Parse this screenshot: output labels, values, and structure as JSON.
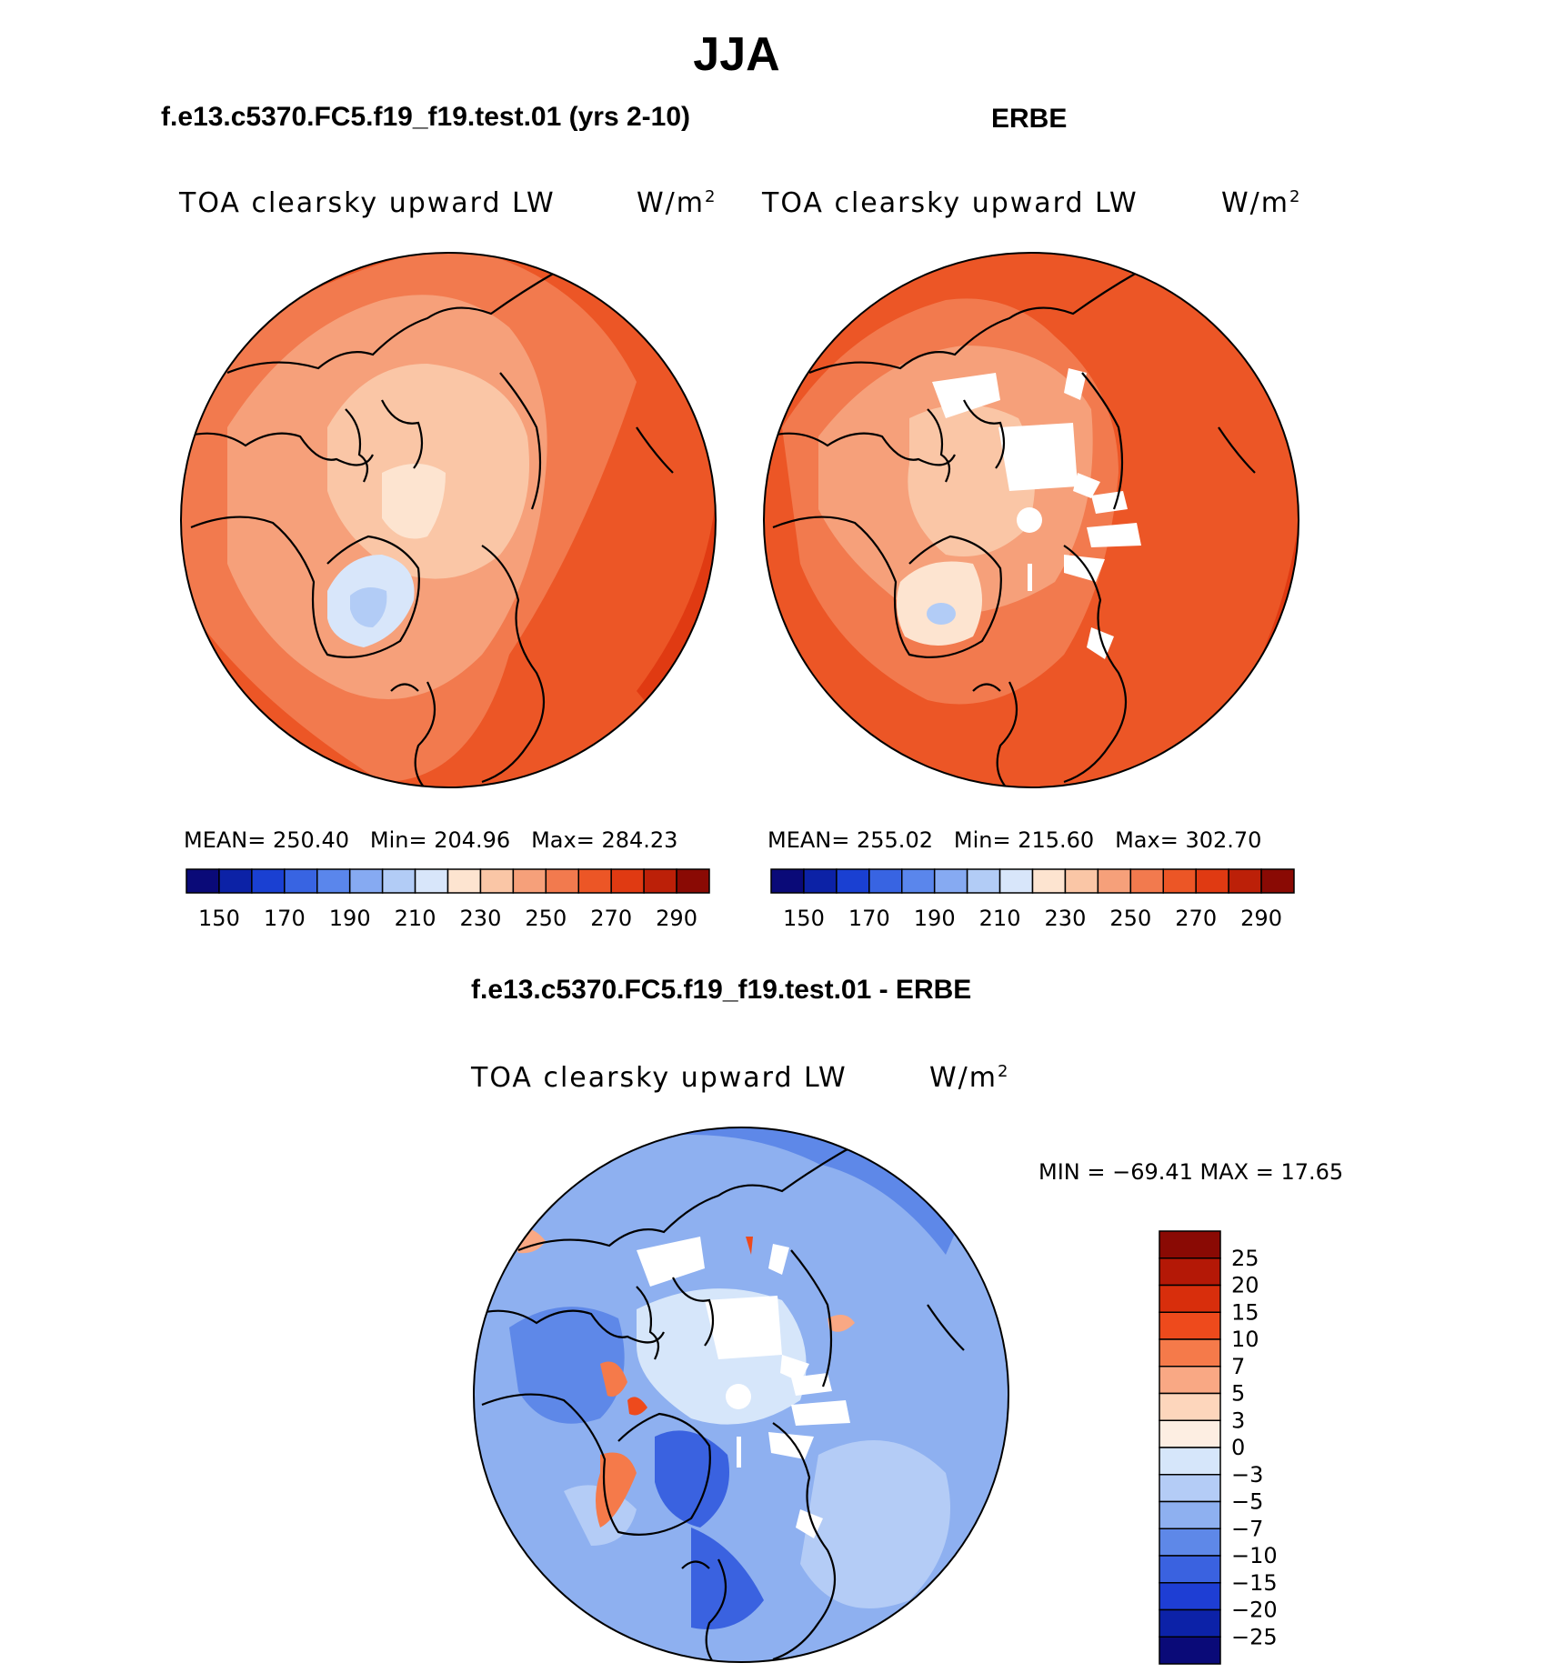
{
  "title": "JJA",
  "chart_data": [
    {
      "type": "heatmap",
      "projection": "north-polar-stereographic",
      "title": "f.e13.c5370.FC5.f19_f19.test.01 (yrs 2-10)",
      "variable": "TOA clearsky upward LW",
      "units": "W/m",
      "units_exponent": "2",
      "stats": {
        "mean": "250.40",
        "min": "204.96",
        "max": "284.23"
      },
      "stats_labels": {
        "mean": "MEAN=",
        "min": "Min=",
        "max": "Max="
      },
      "colorbar": {
        "orientation": "horizontal",
        "tick_labels": [
          "150",
          "170",
          "190",
          "210",
          "230",
          "250",
          "270",
          "290"
        ],
        "colors": [
          "#0a0a78",
          "#0c22a6",
          "#1a40d2",
          "#3864e2",
          "#5a86ec",
          "#86aaf2",
          "#b2ccf6",
          "#d8e6fa",
          "#fde4d0",
          "#fac6a6",
          "#f6a07a",
          "#f27a4e",
          "#ec5626",
          "#e03a12",
          "#bc2008",
          "#8a0a04"
        ]
      }
    },
    {
      "type": "heatmap",
      "projection": "north-polar-stereographic",
      "title": "ERBE",
      "variable": "TOA clearsky upward LW",
      "units": "W/m",
      "units_exponent": "2",
      "stats": {
        "mean": "255.02",
        "min": "215.60",
        "max": "302.70"
      },
      "stats_labels": {
        "mean": "MEAN=",
        "min": "Min=",
        "max": "Max="
      },
      "colorbar": {
        "orientation": "horizontal",
        "tick_labels": [
          "150",
          "170",
          "190",
          "210",
          "230",
          "250",
          "270",
          "290"
        ],
        "colors": [
          "#0a0a78",
          "#0c22a6",
          "#1a40d2",
          "#3864e2",
          "#5a86ec",
          "#86aaf2",
          "#b2ccf6",
          "#d8e6fa",
          "#fde4d0",
          "#fac6a6",
          "#f6a07a",
          "#f27a4e",
          "#ec5626",
          "#e03a12",
          "#bc2008",
          "#8a0a04"
        ]
      }
    },
    {
      "type": "heatmap",
      "projection": "north-polar-stereographic",
      "title": "f.e13.c5370.FC5.f19_f19.test.01 - ERBE",
      "variable": "TOA clearsky upward LW",
      "units": "W/m",
      "units_exponent": "2",
      "minmax": {
        "label": "MIN = −69.41 MAX =  17.65",
        "min": -69.41,
        "max": 17.65
      },
      "colorbar": {
        "orientation": "vertical",
        "tick_labels": [
          "25",
          "20",
          "15",
          "10",
          "7",
          "5",
          "3",
          "0",
          "−3",
          "−5",
          "−7",
          "−10",
          "−15",
          "−20",
          "−25"
        ],
        "colors": [
          "#8a0a04",
          "#b41806",
          "#d82e0c",
          "#ee4a1c",
          "#f57a4a",
          "#f9a884",
          "#fdd6bc",
          "#fdeee2",
          "#d6e6fa",
          "#b4ccf6",
          "#8eb0f0",
          "#5e88e8",
          "#3a62e0",
          "#1e3ed4",
          "#0c22a8",
          "#0a0a78"
        ]
      }
    }
  ]
}
